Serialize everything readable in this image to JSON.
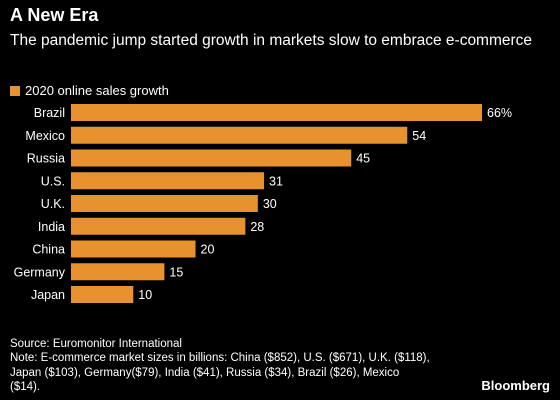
{
  "header": {
    "title": "A New Era",
    "subtitle": "The pandemic jump started growth in markets slow to embrace e-commerce"
  },
  "legend": {
    "label": "2020 online sales growth"
  },
  "colors": {
    "bar": "#e8922f",
    "background": "#000000",
    "text": "#ffffff"
  },
  "chart_data": {
    "type": "bar",
    "orientation": "horizontal",
    "categories": [
      "Brazil",
      "Mexico",
      "Russia",
      "U.S.",
      "U.K.",
      "India",
      "China",
      "Germany",
      "Japan"
    ],
    "values": [
      66,
      54,
      45,
      31,
      30,
      28,
      20,
      15,
      10
    ],
    "value_labels": [
      "66%",
      "54",
      "45",
      "31",
      "30",
      "28",
      "20",
      "15",
      "10"
    ],
    "series": [
      {
        "name": "2020 online sales growth",
        "values": [
          66,
          54,
          45,
          31,
          30,
          28,
          20,
          15,
          10
        ]
      }
    ],
    "title": "A New Era",
    "subtitle": "The pandemic jump started growth in markets slow to embrace e-commerce",
    "xlim": [
      0,
      66
    ],
    "grid": false,
    "legend_position": "top-left"
  },
  "footer": {
    "source": "Source: Euromonitor International",
    "note": "Note: E-commerce market sizes in billions: China ($852), U.S. ($671), U.K. ($118), Japan ($103), Germany($79), India ($41), Russia ($34), Brazil ($26), Mexico ($14).",
    "brand": "Bloomberg"
  }
}
